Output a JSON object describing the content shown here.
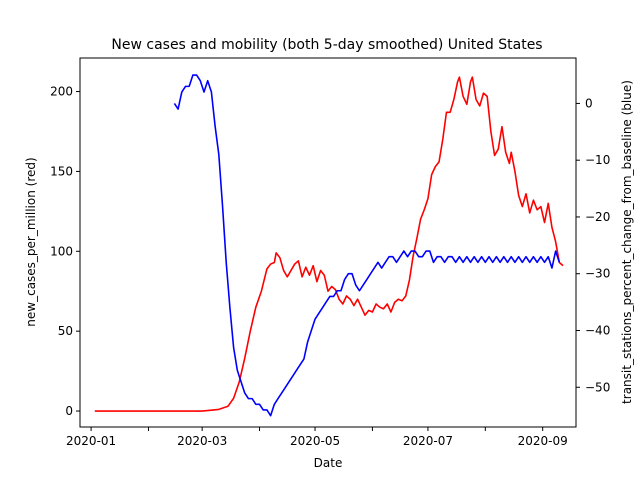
{
  "chart_data": {
    "type": "line",
    "title": "New cases and mobility (both 5-day smoothed) United States",
    "xlabel": "Date",
    "ylabel_left": "new_cases_per_million (red)",
    "ylabel_right": "transit_stations_percent_change_from_baseline (blue)",
    "xlim": [
      "2019-12-26",
      "2020-09-19"
    ],
    "ylim_left": [
      -10,
      221
    ],
    "ylim_right": [
      -57,
      8
    ],
    "x_ticks": [
      {
        "date": "2020-01-01",
        "label": "2020-01"
      },
      {
        "date": "2020-02-01",
        "label": ""
      },
      {
        "date": "2020-03-01",
        "label": "2020-03"
      },
      {
        "date": "2020-04-01",
        "label": ""
      },
      {
        "date": "2020-05-01",
        "label": "2020-05"
      },
      {
        "date": "2020-06-01",
        "label": ""
      },
      {
        "date": "2020-07-01",
        "label": "2020-07"
      },
      {
        "date": "2020-08-01",
        "label": ""
      },
      {
        "date": "2020-09-01",
        "label": "2020-09"
      }
    ],
    "y_ticks_left": [
      0,
      50,
      100,
      150,
      200
    ],
    "y_ticks_right": [
      0,
      -10,
      -20,
      -30,
      -40,
      -50
    ],
    "series": [
      {
        "color": "#ff0000",
        "axis": "left",
        "points": [
          [
            "2020-01-03",
            0
          ],
          [
            "2020-02-01",
            0
          ],
          [
            "2020-03-01",
            0
          ],
          [
            "2020-03-10",
            1
          ],
          [
            "2020-03-15",
            3
          ],
          [
            "2020-03-18",
            8
          ],
          [
            "2020-03-21",
            18
          ],
          [
            "2020-03-24",
            33
          ],
          [
            "2020-03-27",
            50
          ],
          [
            "2020-03-30",
            65
          ],
          [
            "2020-04-02",
            75
          ],
          [
            "2020-04-05",
            89
          ],
          [
            "2020-04-07",
            92
          ],
          [
            "2020-04-09",
            93
          ],
          [
            "2020-04-10",
            99
          ],
          [
            "2020-04-12",
            96
          ],
          [
            "2020-04-14",
            88
          ],
          [
            "2020-04-16",
            84
          ],
          [
            "2020-04-18",
            88
          ],
          [
            "2020-04-20",
            92
          ],
          [
            "2020-04-22",
            94
          ],
          [
            "2020-04-24",
            84
          ],
          [
            "2020-04-26",
            90
          ],
          [
            "2020-04-28",
            85
          ],
          [
            "2020-04-30",
            91
          ],
          [
            "2020-05-02",
            81
          ],
          [
            "2020-05-04",
            88
          ],
          [
            "2020-05-06",
            85
          ],
          [
            "2020-05-08",
            75
          ],
          [
            "2020-05-10",
            78
          ],
          [
            "2020-05-12",
            76
          ],
          [
            "2020-05-14",
            70
          ],
          [
            "2020-05-16",
            67
          ],
          [
            "2020-05-18",
            72
          ],
          [
            "2020-05-20",
            70
          ],
          [
            "2020-05-22",
            66
          ],
          [
            "2020-05-24",
            70
          ],
          [
            "2020-05-26",
            65
          ],
          [
            "2020-05-28",
            60
          ],
          [
            "2020-05-30",
            63
          ],
          [
            "2020-06-01",
            62
          ],
          [
            "2020-06-03",
            67
          ],
          [
            "2020-06-05",
            65
          ],
          [
            "2020-06-07",
            64
          ],
          [
            "2020-06-09",
            67
          ],
          [
            "2020-06-11",
            62
          ],
          [
            "2020-06-13",
            68
          ],
          [
            "2020-06-15",
            70
          ],
          [
            "2020-06-17",
            69
          ],
          [
            "2020-06-19",
            72
          ],
          [
            "2020-06-21",
            82
          ],
          [
            "2020-06-23",
            97
          ],
          [
            "2020-06-25",
            108
          ],
          [
            "2020-06-27",
            120
          ],
          [
            "2020-06-29",
            126
          ],
          [
            "2020-07-01",
            133
          ],
          [
            "2020-07-03",
            148
          ],
          [
            "2020-07-05",
            153
          ],
          [
            "2020-07-07",
            156
          ],
          [
            "2020-07-09",
            170
          ],
          [
            "2020-07-11",
            187
          ],
          [
            "2020-07-13",
            187
          ],
          [
            "2020-07-15",
            195
          ],
          [
            "2020-07-17",
            206
          ],
          [
            "2020-07-18",
            209
          ],
          [
            "2020-07-20",
            197
          ],
          [
            "2020-07-22",
            192
          ],
          [
            "2020-07-24",
            206
          ],
          [
            "2020-07-25",
            209
          ],
          [
            "2020-07-27",
            195
          ],
          [
            "2020-07-29",
            191
          ],
          [
            "2020-07-31",
            199
          ],
          [
            "2020-08-02",
            197
          ],
          [
            "2020-08-04",
            175
          ],
          [
            "2020-08-06",
            160
          ],
          [
            "2020-08-08",
            164
          ],
          [
            "2020-08-10",
            178
          ],
          [
            "2020-08-12",
            162
          ],
          [
            "2020-08-14",
            155
          ],
          [
            "2020-08-15",
            162
          ],
          [
            "2020-08-17",
            150
          ],
          [
            "2020-08-19",
            135
          ],
          [
            "2020-08-21",
            128
          ],
          [
            "2020-08-23",
            136
          ],
          [
            "2020-08-25",
            124
          ],
          [
            "2020-08-27",
            132
          ],
          [
            "2020-08-29",
            126
          ],
          [
            "2020-08-31",
            128
          ],
          [
            "2020-09-02",
            118
          ],
          [
            "2020-09-04",
            130
          ],
          [
            "2020-09-06",
            115
          ],
          [
            "2020-09-08",
            106
          ],
          [
            "2020-09-10",
            93
          ],
          [
            "2020-09-12",
            91
          ]
        ]
      },
      {
        "color": "#0000ff",
        "axis": "right",
        "points": [
          [
            "2020-02-15",
            0
          ],
          [
            "2020-02-17",
            -1
          ],
          [
            "2020-02-19",
            2
          ],
          [
            "2020-02-21",
            3
          ],
          [
            "2020-02-23",
            3
          ],
          [
            "2020-02-25",
            5
          ],
          [
            "2020-02-27",
            5
          ],
          [
            "2020-02-29",
            4
          ],
          [
            "2020-03-02",
            2
          ],
          [
            "2020-03-04",
            4
          ],
          [
            "2020-03-06",
            2
          ],
          [
            "2020-03-08",
            -4
          ],
          [
            "2020-03-10",
            -9
          ],
          [
            "2020-03-12",
            -18
          ],
          [
            "2020-03-14",
            -28
          ],
          [
            "2020-03-16",
            -36
          ],
          [
            "2020-03-18",
            -43
          ],
          [
            "2020-03-20",
            -47
          ],
          [
            "2020-03-22",
            -49
          ],
          [
            "2020-03-24",
            -51
          ],
          [
            "2020-03-26",
            -52
          ],
          [
            "2020-03-28",
            -52
          ],
          [
            "2020-03-30",
            -53
          ],
          [
            "2020-04-01",
            -53
          ],
          [
            "2020-04-03",
            -54
          ],
          [
            "2020-04-05",
            -54
          ],
          [
            "2020-04-07",
            -55
          ],
          [
            "2020-04-09",
            -53
          ],
          [
            "2020-04-11",
            -52
          ],
          [
            "2020-04-13",
            -51
          ],
          [
            "2020-04-15",
            -50
          ],
          [
            "2020-04-17",
            -49
          ],
          [
            "2020-04-19",
            -48
          ],
          [
            "2020-04-21",
            -47
          ],
          [
            "2020-04-23",
            -46
          ],
          [
            "2020-04-25",
            -45
          ],
          [
            "2020-04-27",
            -42
          ],
          [
            "2020-04-29",
            -40
          ],
          [
            "2020-05-01",
            -38
          ],
          [
            "2020-05-03",
            -37
          ],
          [
            "2020-05-05",
            -36
          ],
          [
            "2020-05-07",
            -35
          ],
          [
            "2020-05-09",
            -34
          ],
          [
            "2020-05-11",
            -34
          ],
          [
            "2020-05-13",
            -33
          ],
          [
            "2020-05-15",
            -33
          ],
          [
            "2020-05-17",
            -31
          ],
          [
            "2020-05-19",
            -30
          ],
          [
            "2020-05-21",
            -30
          ],
          [
            "2020-05-23",
            -32
          ],
          [
            "2020-05-25",
            -33
          ],
          [
            "2020-05-27",
            -32
          ],
          [
            "2020-05-29",
            -31
          ],
          [
            "2020-05-31",
            -30
          ],
          [
            "2020-06-02",
            -29
          ],
          [
            "2020-06-04",
            -28
          ],
          [
            "2020-06-06",
            -29
          ],
          [
            "2020-06-08",
            -28
          ],
          [
            "2020-06-10",
            -27
          ],
          [
            "2020-06-12",
            -27
          ],
          [
            "2020-06-14",
            -28
          ],
          [
            "2020-06-16",
            -27
          ],
          [
            "2020-06-18",
            -26
          ],
          [
            "2020-06-20",
            -27
          ],
          [
            "2020-06-22",
            -26
          ],
          [
            "2020-06-24",
            -26
          ],
          [
            "2020-06-26",
            -27
          ],
          [
            "2020-06-28",
            -27
          ],
          [
            "2020-06-30",
            -26
          ],
          [
            "2020-07-02",
            -26
          ],
          [
            "2020-07-04",
            -28
          ],
          [
            "2020-07-06",
            -27
          ],
          [
            "2020-07-08",
            -27
          ],
          [
            "2020-07-10",
            -28
          ],
          [
            "2020-07-12",
            -27
          ],
          [
            "2020-07-14",
            -27
          ],
          [
            "2020-07-16",
            -28
          ],
          [
            "2020-07-18",
            -27
          ],
          [
            "2020-07-20",
            -28
          ],
          [
            "2020-07-22",
            -27
          ],
          [
            "2020-07-24",
            -28
          ],
          [
            "2020-07-26",
            -27
          ],
          [
            "2020-07-28",
            -28
          ],
          [
            "2020-07-30",
            -27
          ],
          [
            "2020-08-01",
            -28
          ],
          [
            "2020-08-03",
            -27
          ],
          [
            "2020-08-05",
            -28
          ],
          [
            "2020-08-07",
            -27
          ],
          [
            "2020-08-09",
            -28
          ],
          [
            "2020-08-11",
            -27
          ],
          [
            "2020-08-13",
            -28
          ],
          [
            "2020-08-15",
            -27
          ],
          [
            "2020-08-17",
            -28
          ],
          [
            "2020-08-19",
            -27
          ],
          [
            "2020-08-21",
            -28
          ],
          [
            "2020-08-23",
            -27
          ],
          [
            "2020-08-25",
            -28
          ],
          [
            "2020-08-27",
            -27
          ],
          [
            "2020-08-29",
            -28
          ],
          [
            "2020-08-31",
            -27
          ],
          [
            "2020-09-02",
            -28
          ],
          [
            "2020-09-04",
            -27
          ],
          [
            "2020-09-06",
            -29
          ],
          [
            "2020-09-08",
            -26
          ],
          [
            "2020-09-10",
            -28
          ]
        ]
      }
    ]
  }
}
